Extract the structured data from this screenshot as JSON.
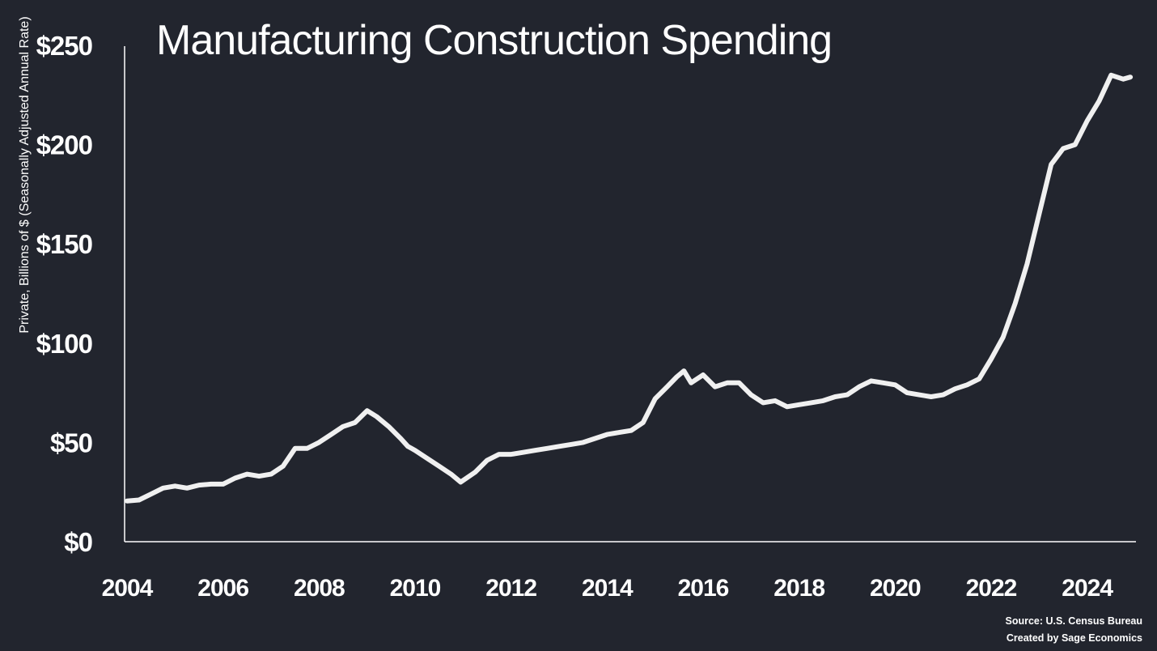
{
  "chart_data": {
    "type": "line",
    "title": "Manufacturing Construction Spending",
    "ylabel": "Private, Billions of $ (Seasonally Adjusted Annual Rate)",
    "xlabel": "",
    "xlim": [
      2004,
      2025
    ],
    "ylim": [
      0,
      250
    ],
    "yticks": [
      0,
      50,
      100,
      150,
      200,
      250
    ],
    "ytick_labels": [
      "$0",
      "$50",
      "$100",
      "$150",
      "$200",
      "$250"
    ],
    "xticks": [
      2004,
      2006,
      2008,
      2010,
      2012,
      2014,
      2016,
      2018,
      2020,
      2022,
      2024
    ],
    "xtick_labels": [
      "2004",
      "2006",
      "2008",
      "2010",
      "2012",
      "2014",
      "2016",
      "2018",
      "2020",
      "2022",
      "2024"
    ],
    "grid": false,
    "line_color": "#f0f0f0",
    "background": "#22252e",
    "series": [
      {
        "x": [
          2004.0,
          2004.25,
          2004.5,
          2004.75,
          2005.0,
          2005.25,
          2005.5,
          2005.75,
          2006.0,
          2006.25,
          2006.5,
          2006.75,
          2007.0,
          2007.25,
          2007.5,
          2007.75,
          2008.0,
          2008.25,
          2008.5,
          2008.75,
          2009.0,
          2009.2,
          2009.45,
          2009.7,
          2009.85,
          2010.0,
          2010.25,
          2010.5,
          2010.75,
          2010.95,
          2011.25,
          2011.5,
          2011.75,
          2012.0,
          2012.25,
          2012.5,
          2012.75,
          2013.0,
          2013.25,
          2013.5,
          2013.75,
          2014.0,
          2014.25,
          2014.5,
          2014.75,
          2015.0,
          2015.25,
          2015.45,
          2015.6,
          2015.75,
          2016.0,
          2016.25,
          2016.5,
          2016.75,
          2017.0,
          2017.25,
          2017.5,
          2017.75,
          2018.0,
          2018.25,
          2018.5,
          2018.75,
          2019.0,
          2019.25,
          2019.5,
          2019.75,
          2020.0,
          2020.25,
          2020.5,
          2020.75,
          2021.0,
          2021.25,
          2021.5,
          2021.75,
          2022.0,
          2022.25,
          2022.5,
          2022.75,
          2023.0,
          2023.25,
          2023.5,
          2023.75,
          2024.0,
          2024.25,
          2024.5,
          2024.75,
          2024.9
        ],
        "y": [
          20.5,
          21,
          24,
          27,
          28,
          27,
          28.5,
          29,
          29,
          32,
          34,
          33,
          34,
          38,
          47,
          47,
          50,
          54,
          58,
          60,
          66,
          63,
          58,
          52,
          48,
          46,
          42,
          38,
          34,
          30,
          35,
          41,
          44,
          44,
          45,
          46,
          47,
          48,
          49,
          50,
          52,
          54,
          55,
          56,
          60,
          72,
          78,
          83,
          86,
          80,
          84,
          78,
          80,
          80,
          74,
          70,
          71,
          68,
          69,
          70,
          71,
          73,
          74,
          78,
          81,
          80,
          79,
          75,
          74,
          73,
          74,
          77,
          79,
          82,
          92,
          103,
          120,
          140,
          165,
          190,
          198,
          200,
          212,
          222,
          235,
          233,
          234
        ]
      }
    ]
  },
  "footer": {
    "source": "Source: U.S. Census Bureau",
    "credit": "Created by Sage Economics"
  }
}
